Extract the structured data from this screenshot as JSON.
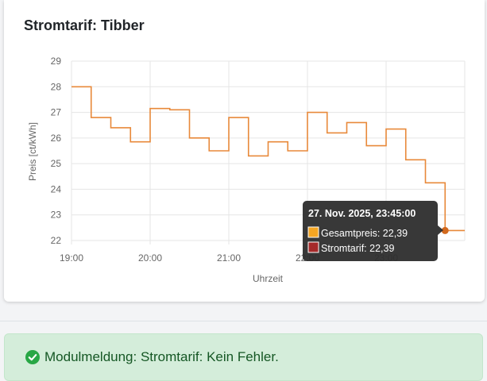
{
  "card": {
    "title": "Stromtarif: Tibber"
  },
  "chart_data": {
    "type": "line",
    "step": true,
    "title": "Stromtarif: Tibber",
    "ylabel": "Preis [ct/kWh]",
    "xlabel": "Uhrzeit",
    "ylim": [
      22,
      29
    ],
    "yticks": [
      22,
      23,
      24,
      25,
      26,
      27,
      28,
      29
    ],
    "xlim": [
      "19:00",
      "24:00"
    ],
    "xticks": [
      "19:00",
      "20:00",
      "21:00",
      "22:00",
      "23:00"
    ],
    "x": [
      "19:00",
      "19:15",
      "19:30",
      "19:45",
      "20:00",
      "20:15",
      "20:30",
      "20:45",
      "21:00",
      "21:15",
      "21:30",
      "21:45",
      "22:00",
      "22:15",
      "22:30",
      "22:45",
      "23:00",
      "23:15",
      "23:30",
      "23:45"
    ],
    "grid": true,
    "colors": {
      "gesamtpreis": "#e8893a",
      "stromtarif": "#a52a2a",
      "marker": "#d2691e"
    },
    "series": [
      {
        "name": "Gesamtpreis",
        "values": [
          28.0,
          26.8,
          26.4,
          25.85,
          27.15,
          27.1,
          26.0,
          25.5,
          26.8,
          25.3,
          25.85,
          25.5,
          27.0,
          26.2,
          26.6,
          25.7,
          26.35,
          25.15,
          24.25,
          22.39
        ]
      },
      {
        "name": "Stromtarif",
        "values": [
          28.0,
          26.8,
          26.4,
          25.85,
          27.15,
          27.1,
          26.0,
          25.5,
          26.8,
          25.3,
          25.85,
          25.5,
          27.0,
          26.2,
          26.6,
          25.7,
          26.35,
          25.15,
          24.25,
          22.39
        ]
      }
    ],
    "tooltip": {
      "title": "27. Nov. 2025, 23:45:00",
      "items": [
        {
          "label": "Gesamtpreis: 22,39",
          "color": "#f5a623"
        },
        {
          "label": "Stromtarif: 22,39",
          "color": "#a52a2a"
        }
      ]
    }
  },
  "alert": {
    "text": "Modulmeldung: Stromtarif: Kein Fehler.",
    "icon": "check-circle-icon",
    "color": "#28a745"
  }
}
